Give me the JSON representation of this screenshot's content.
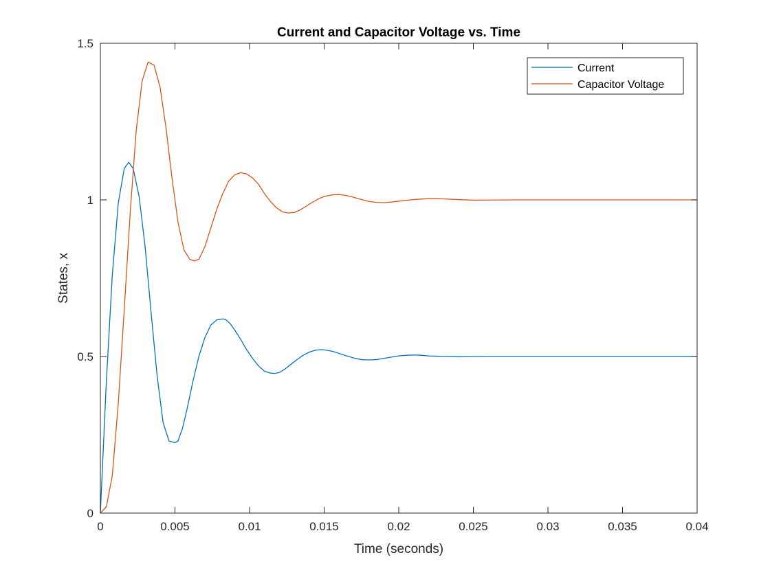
{
  "chart_data": {
    "type": "line",
    "title": "Current and Capacitor Voltage vs. Time",
    "xlabel": "Time (seconds)",
    "ylabel": "States, x",
    "xlim": [
      0,
      0.04
    ],
    "ylim": [
      0,
      1.5
    ],
    "xticks": [
      0,
      0.005,
      0.01,
      0.015,
      0.02,
      0.025,
      0.03,
      0.035,
      0.04
    ],
    "xtick_labels": [
      "0",
      "0.005",
      "0.01",
      "0.015",
      "0.02",
      "0.025",
      "0.03",
      "0.035",
      "0.04"
    ],
    "yticks": [
      0,
      0.5,
      1,
      1.5
    ],
    "ytick_labels": [
      "0",
      "0.5",
      "1",
      "1.5"
    ],
    "grid": false,
    "legend_position": "top-right",
    "series": [
      {
        "name": "Current",
        "color": "#0072BD",
        "x": [
          0,
          0.0004,
          0.0008,
          0.0012,
          0.0016,
          0.0019,
          0.0022,
          0.0026,
          0.003,
          0.0034,
          0.0038,
          0.0042,
          0.0046,
          0.005,
          0.0052,
          0.0055,
          0.0058,
          0.0062,
          0.0066,
          0.007,
          0.0074,
          0.0078,
          0.0082,
          0.0084,
          0.0087,
          0.009,
          0.0094,
          0.0098,
          0.0102,
          0.0106,
          0.011,
          0.0114,
          0.0117,
          0.012,
          0.0124,
          0.0128,
          0.0132,
          0.0136,
          0.014,
          0.0144,
          0.0148,
          0.0152,
          0.0156,
          0.016,
          0.0165,
          0.017,
          0.0175,
          0.018,
          0.0185,
          0.019,
          0.0195,
          0.02,
          0.0205,
          0.021,
          0.0215,
          0.022,
          0.0225,
          0.023,
          0.024,
          0.025,
          0.026,
          0.027,
          0.028,
          0.03,
          0.032,
          0.034,
          0.036,
          0.038,
          0.04
        ],
        "y": [
          0,
          0.42,
          0.76,
          0.99,
          1.1,
          1.12,
          1.1,
          1.01,
          0.85,
          0.64,
          0.44,
          0.29,
          0.23,
          0.225,
          0.23,
          0.27,
          0.33,
          0.42,
          0.5,
          0.56,
          0.6,
          0.617,
          0.62,
          0.618,
          0.605,
          0.585,
          0.555,
          0.522,
          0.494,
          0.47,
          0.453,
          0.447,
          0.446,
          0.449,
          0.461,
          0.476,
          0.491,
          0.504,
          0.514,
          0.52,
          0.522,
          0.52,
          0.516,
          0.51,
          0.502,
          0.495,
          0.49,
          0.489,
          0.49,
          0.494,
          0.498,
          0.502,
          0.504,
          0.505,
          0.504,
          0.502,
          0.501,
          0.5,
          0.499,
          0.4995,
          0.5,
          0.5,
          0.5,
          0.5,
          0.5,
          0.5,
          0.5,
          0.5,
          0.5
        ]
      },
      {
        "name": "Capacitor Voltage",
        "color": "#D95319",
        "x": [
          0,
          0.0004,
          0.0008,
          0.0012,
          0.0016,
          0.002,
          0.0024,
          0.0028,
          0.0032,
          0.0036,
          0.004,
          0.0044,
          0.0048,
          0.0052,
          0.0056,
          0.006,
          0.0063,
          0.0066,
          0.007,
          0.0074,
          0.0078,
          0.0082,
          0.0086,
          0.009,
          0.0094,
          0.0098,
          0.0102,
          0.0106,
          0.011,
          0.0114,
          0.0118,
          0.0122,
          0.0126,
          0.013,
          0.0134,
          0.0138,
          0.0142,
          0.0146,
          0.015,
          0.0155,
          0.016,
          0.0165,
          0.017,
          0.0175,
          0.018,
          0.0185,
          0.019,
          0.0195,
          0.02,
          0.021,
          0.022,
          0.0225,
          0.023,
          0.024,
          0.025,
          0.026,
          0.028,
          0.03,
          0.032,
          0.034,
          0.036,
          0.038,
          0.04
        ],
        "y": [
          0,
          0.02,
          0.12,
          0.35,
          0.65,
          0.96,
          1.22,
          1.38,
          1.44,
          1.43,
          1.36,
          1.23,
          1.07,
          0.93,
          0.84,
          0.81,
          0.805,
          0.81,
          0.85,
          0.91,
          0.97,
          1.02,
          1.06,
          1.08,
          1.087,
          1.083,
          1.07,
          1.05,
          1.02,
          0.995,
          0.975,
          0.962,
          0.958,
          0.96,
          0.968,
          0.98,
          0.992,
          1.003,
          1.011,
          1.016,
          1.017,
          1.014,
          1.008,
          1.001,
          0.995,
          0.992,
          0.991,
          0.993,
          0.996,
          1.001,
          1.004,
          1.004,
          1.003,
          1.001,
          0.999,
          0.9995,
          1.0,
          1.0,
          1.0,
          1.0,
          1.0,
          1.0,
          1.0
        ]
      }
    ]
  }
}
